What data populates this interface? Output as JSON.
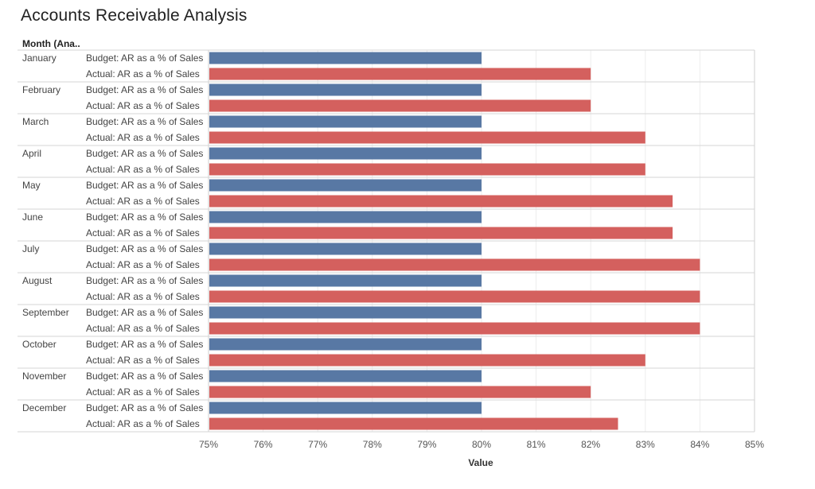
{
  "page": {
    "title": "Accounts Receivable Analysis",
    "row_header": "Month (Ana.."
  },
  "chart_data": {
    "type": "bar",
    "orientation": "horizontal",
    "title": "Accounts Receivable Analysis",
    "xlabel": "Value",
    "ylabel": "Month (Ana..",
    "xlim": [
      75,
      85
    ],
    "x_ticks": [
      "75%",
      "76%",
      "77%",
      "78%",
      "79%",
      "80%",
      "81%",
      "82%",
      "83%",
      "84%",
      "85%"
    ],
    "grid": true,
    "categories": [
      "January",
      "February",
      "March",
      "April",
      "May",
      "June",
      "July",
      "August",
      "September",
      "October",
      "November",
      "December"
    ],
    "series": [
      {
        "name": "Budget: AR as a % of Sales",
        "color": "#5878a4",
        "values": [
          80,
          80,
          80,
          80,
          80,
          80,
          80,
          80,
          80,
          80,
          80,
          80
        ]
      },
      {
        "name": "Actual: AR as a % of Sales",
        "color": "#d4605e",
        "values": [
          82,
          82,
          83,
          83,
          83.5,
          83.5,
          84,
          84,
          84,
          83,
          82,
          82.5
        ]
      }
    ]
  }
}
